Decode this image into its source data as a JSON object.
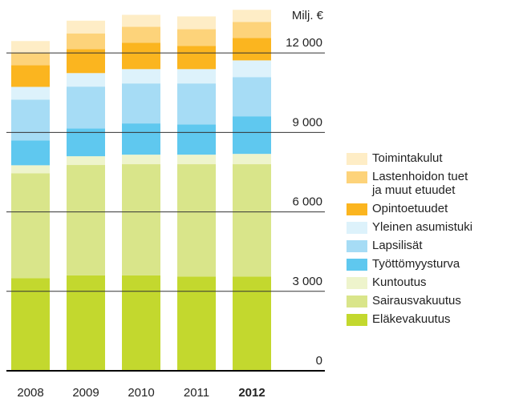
{
  "chart_data": {
    "type": "stacked_bar",
    "unit_label": "Milj. €",
    "categories": [
      "2008",
      "2009",
      "2010",
      "2011",
      "2012"
    ],
    "highlight_index": 4,
    "ylim": [
      0,
      14000
    ],
    "yticks": [
      0,
      {
        "value": 3000,
        "label": "3 000"
      },
      {
        "value": 6000,
        "label": "6 000"
      },
      {
        "value": 9000,
        "label": "9 000"
      },
      {
        "value": 12000,
        "label": "12 000"
      }
    ],
    "grid": true,
    "series": [
      {
        "name": "Eläkevakuutus",
        "color": "#c3d82e",
        "values": [
          3500,
          3600,
          3600,
          3560,
          3560
        ]
      },
      {
        "name": "Sairausvakuutus",
        "color": "#d9e58a",
        "values": [
          3960,
          4170,
          4200,
          4240,
          4240
        ]
      },
      {
        "name": "Kuntoutus",
        "color": "#eef4cc",
        "values": [
          300,
          330,
          360,
          360,
          390
        ]
      },
      {
        "name": "Työttömyysturva",
        "color": "#5fc8ef",
        "values": [
          940,
          1050,
          1180,
          1140,
          1420
        ]
      },
      {
        "name": "Lapsilisät",
        "color": "#a6dcf5",
        "values": [
          1540,
          1580,
          1510,
          1550,
          1480
        ]
      },
      {
        "name": "Yleinen asumistuki",
        "color": "#ddf2fb",
        "values": [
          480,
          510,
          540,
          540,
          630
        ]
      },
      {
        "name": "Opintoetuudet",
        "color": "#fbb51f",
        "values": [
          820,
          900,
          1000,
          880,
          850
        ]
      },
      {
        "name": "Lastenhoidon tuet\nja muut etuudet",
        "color": "#fdd37a",
        "values": [
          460,
          600,
          600,
          630,
          600
        ]
      },
      {
        "name": "Toimintakulut",
        "color": "#feedc6",
        "values": [
          450,
          480,
          450,
          480,
          460
        ]
      }
    ]
  }
}
